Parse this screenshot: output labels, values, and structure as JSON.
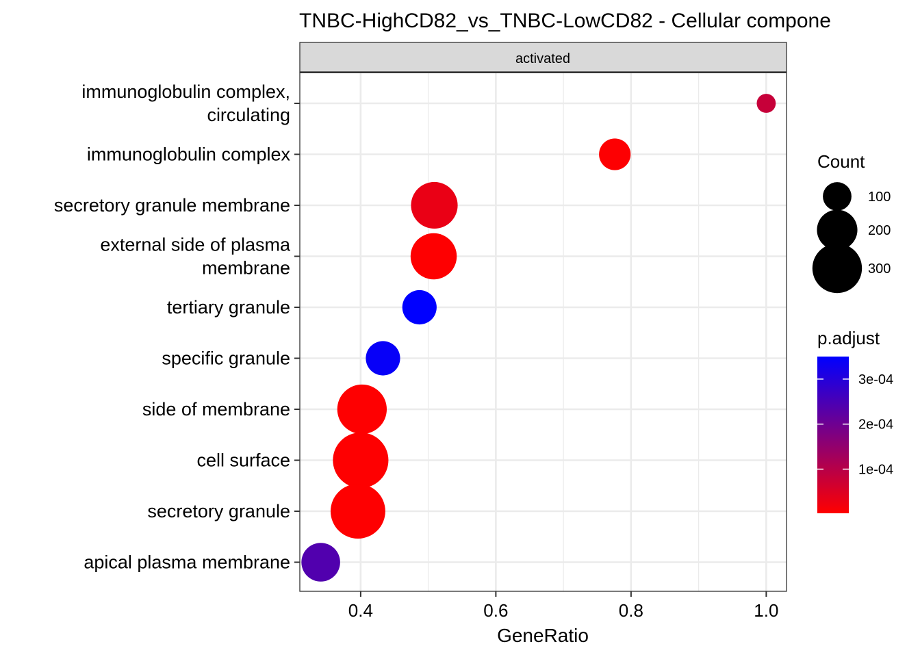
{
  "chart_data": {
    "type": "scatter",
    "title": "TNBC-HighCD82_vs_TNBC-LowCD82 - Cellular compone",
    "facet": "activated",
    "xlabel": "GeneRatio",
    "ylabel": "",
    "xlim": [
      0.31,
      1.03
    ],
    "x_ticks": [
      "0.4",
      "0.6",
      "0.8",
      "1.0"
    ],
    "x_tick_values": [
      0.4,
      0.6,
      0.8,
      1.0
    ],
    "grid": true,
    "categories": [
      [
        "immunoglobulin complex,",
        "circulating"
      ],
      [
        "immunoglobulin complex"
      ],
      [
        "secretory granule membrane"
      ],
      [
        "external side of plasma",
        "membrane"
      ],
      [
        "tertiary granule"
      ],
      [
        "specific granule"
      ],
      [
        "side of membrane"
      ],
      [
        "cell surface"
      ],
      [
        "secretory granule"
      ],
      [
        "apical plasma membrane"
      ]
    ],
    "points": [
      {
        "x": 1.0,
        "count": 40,
        "p_adjust": 8e-05
      },
      {
        "x": 0.776,
        "count": 110,
        "p_adjust": 5e-06
      },
      {
        "x": 0.509,
        "count": 240,
        "p_adjust": 3e-05
      },
      {
        "x": 0.508,
        "count": 235,
        "p_adjust": 4e-06
      },
      {
        "x": 0.487,
        "count": 130,
        "p_adjust": 0.00035
      },
      {
        "x": 0.433,
        "count": 130,
        "p_adjust": 0.00034
      },
      {
        "x": 0.402,
        "count": 270,
        "p_adjust": 4e-06
      },
      {
        "x": 0.4,
        "count": 340,
        "p_adjust": 3e-06
      },
      {
        "x": 0.396,
        "count": 330,
        "p_adjust": 4e-06
      },
      {
        "x": 0.341,
        "count": 165,
        "p_adjust": 0.00024
      }
    ],
    "legend_count": {
      "title": "Count",
      "values": [
        100,
        200,
        300
      ],
      "labels": [
        "100",
        "200",
        "300"
      ]
    },
    "legend_padjust": {
      "title": "p.adjust",
      "low_color": "#ff0000",
      "high_color": "#0000ff",
      "min": 2e-06,
      "max": 0.00035,
      "break_values": [
        0.0001,
        0.0002,
        0.0003
      ],
      "break_labels": [
        "1e-04",
        "2e-04",
        "3e-04"
      ]
    }
  }
}
